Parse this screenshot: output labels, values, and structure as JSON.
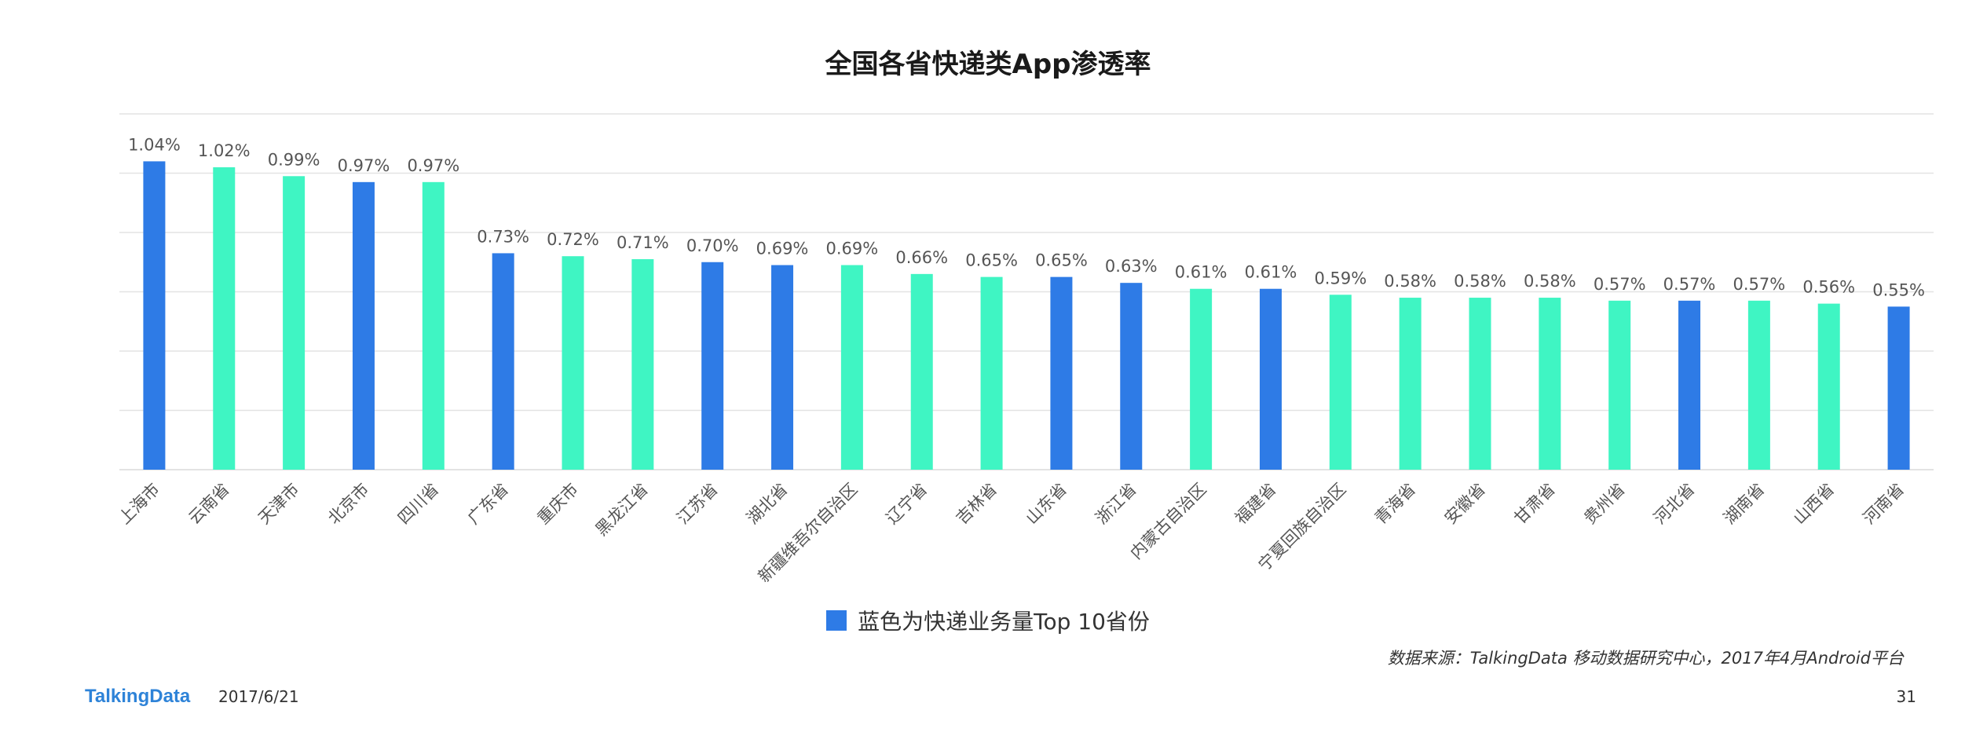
{
  "title": "全国各省快递类App渗透率",
  "legend": {
    "label": "蓝色为快递业务量Top 10省份",
    "color": "#2e7be6"
  },
  "source": "数据来源：TalkingData 移动数据研究中心，2017年4月Android平台",
  "footer": {
    "brand": "TalkingData",
    "date": "2017/6/21",
    "page": "31"
  },
  "colors": {
    "highlight": "#2e7be6",
    "normal": "#3ff5c3",
    "grid": "#e3e3e3",
    "label": "#555555"
  },
  "chart_data": {
    "type": "bar",
    "title": "全国各省快递类App渗透率",
    "xlabel": "",
    "ylabel": "",
    "ylim": [
      0,
      1.2
    ],
    "grid": true,
    "legend_position": "bottom-center",
    "categories": [
      "上海市",
      "云南省",
      "天津市",
      "北京市",
      "四川省",
      "广东省",
      "重庆市",
      "黑龙江省",
      "江苏省",
      "湖北省",
      "新疆维吾尔自治区",
      "辽宁省",
      "吉林省",
      "山东省",
      "浙江省",
      "内蒙古自治区",
      "福建省",
      "宁夏回族自治区",
      "青海省",
      "安徽省",
      "甘肃省",
      "贵州省",
      "河北省",
      "湖南省",
      "山西省",
      "河南省"
    ],
    "values": [
      1.04,
      1.02,
      0.99,
      0.97,
      0.97,
      0.73,
      0.72,
      0.71,
      0.7,
      0.69,
      0.69,
      0.66,
      0.65,
      0.65,
      0.63,
      0.61,
      0.61,
      0.59,
      0.58,
      0.58,
      0.58,
      0.57,
      0.57,
      0.57,
      0.56,
      0.55
    ],
    "value_labels": [
      "1.04%",
      "1.02%",
      "0.99%",
      "0.97%",
      "0.97%",
      "0.73%",
      "0.72%",
      "0.71%",
      "0.70%",
      "0.69%",
      "0.69%",
      "0.66%",
      "0.65%",
      "0.65%",
      "0.63%",
      "0.61%",
      "0.61%",
      "0.59%",
      "0.58%",
      "0.58%",
      "0.58%",
      "0.57%",
      "0.57%",
      "0.57%",
      "0.56%",
      "0.55%"
    ],
    "top10": [
      true,
      false,
      false,
      true,
      false,
      true,
      false,
      false,
      true,
      true,
      false,
      false,
      false,
      true,
      true,
      false,
      true,
      false,
      false,
      false,
      false,
      false,
      true,
      false,
      false,
      true
    ]
  }
}
